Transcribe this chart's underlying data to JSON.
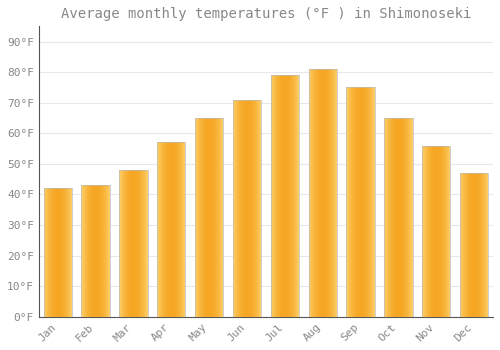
{
  "title": "Average monthly temperatures (°F ) in Shimonoseki",
  "months": [
    "Jan",
    "Feb",
    "Mar",
    "Apr",
    "May",
    "Jun",
    "Jul",
    "Aug",
    "Sep",
    "Oct",
    "Nov",
    "Dec"
  ],
  "values": [
    42,
    43,
    48,
    57,
    65,
    71,
    79,
    81,
    75,
    65,
    56,
    47
  ],
  "bar_color_center": "#F5A623",
  "bar_color_edge": "#FDD06A",
  "bar_outline_color": "#BBBBBB",
  "background_color": "#FFFFFF",
  "grid_color": "#E8E8E8",
  "yticks": [
    0,
    10,
    20,
    30,
    40,
    50,
    60,
    70,
    80,
    90
  ],
  "ylim": [
    0,
    95
  ],
  "title_fontsize": 10,
  "tick_fontsize": 8,
  "font_color": "#888888",
  "bar_width": 0.75
}
